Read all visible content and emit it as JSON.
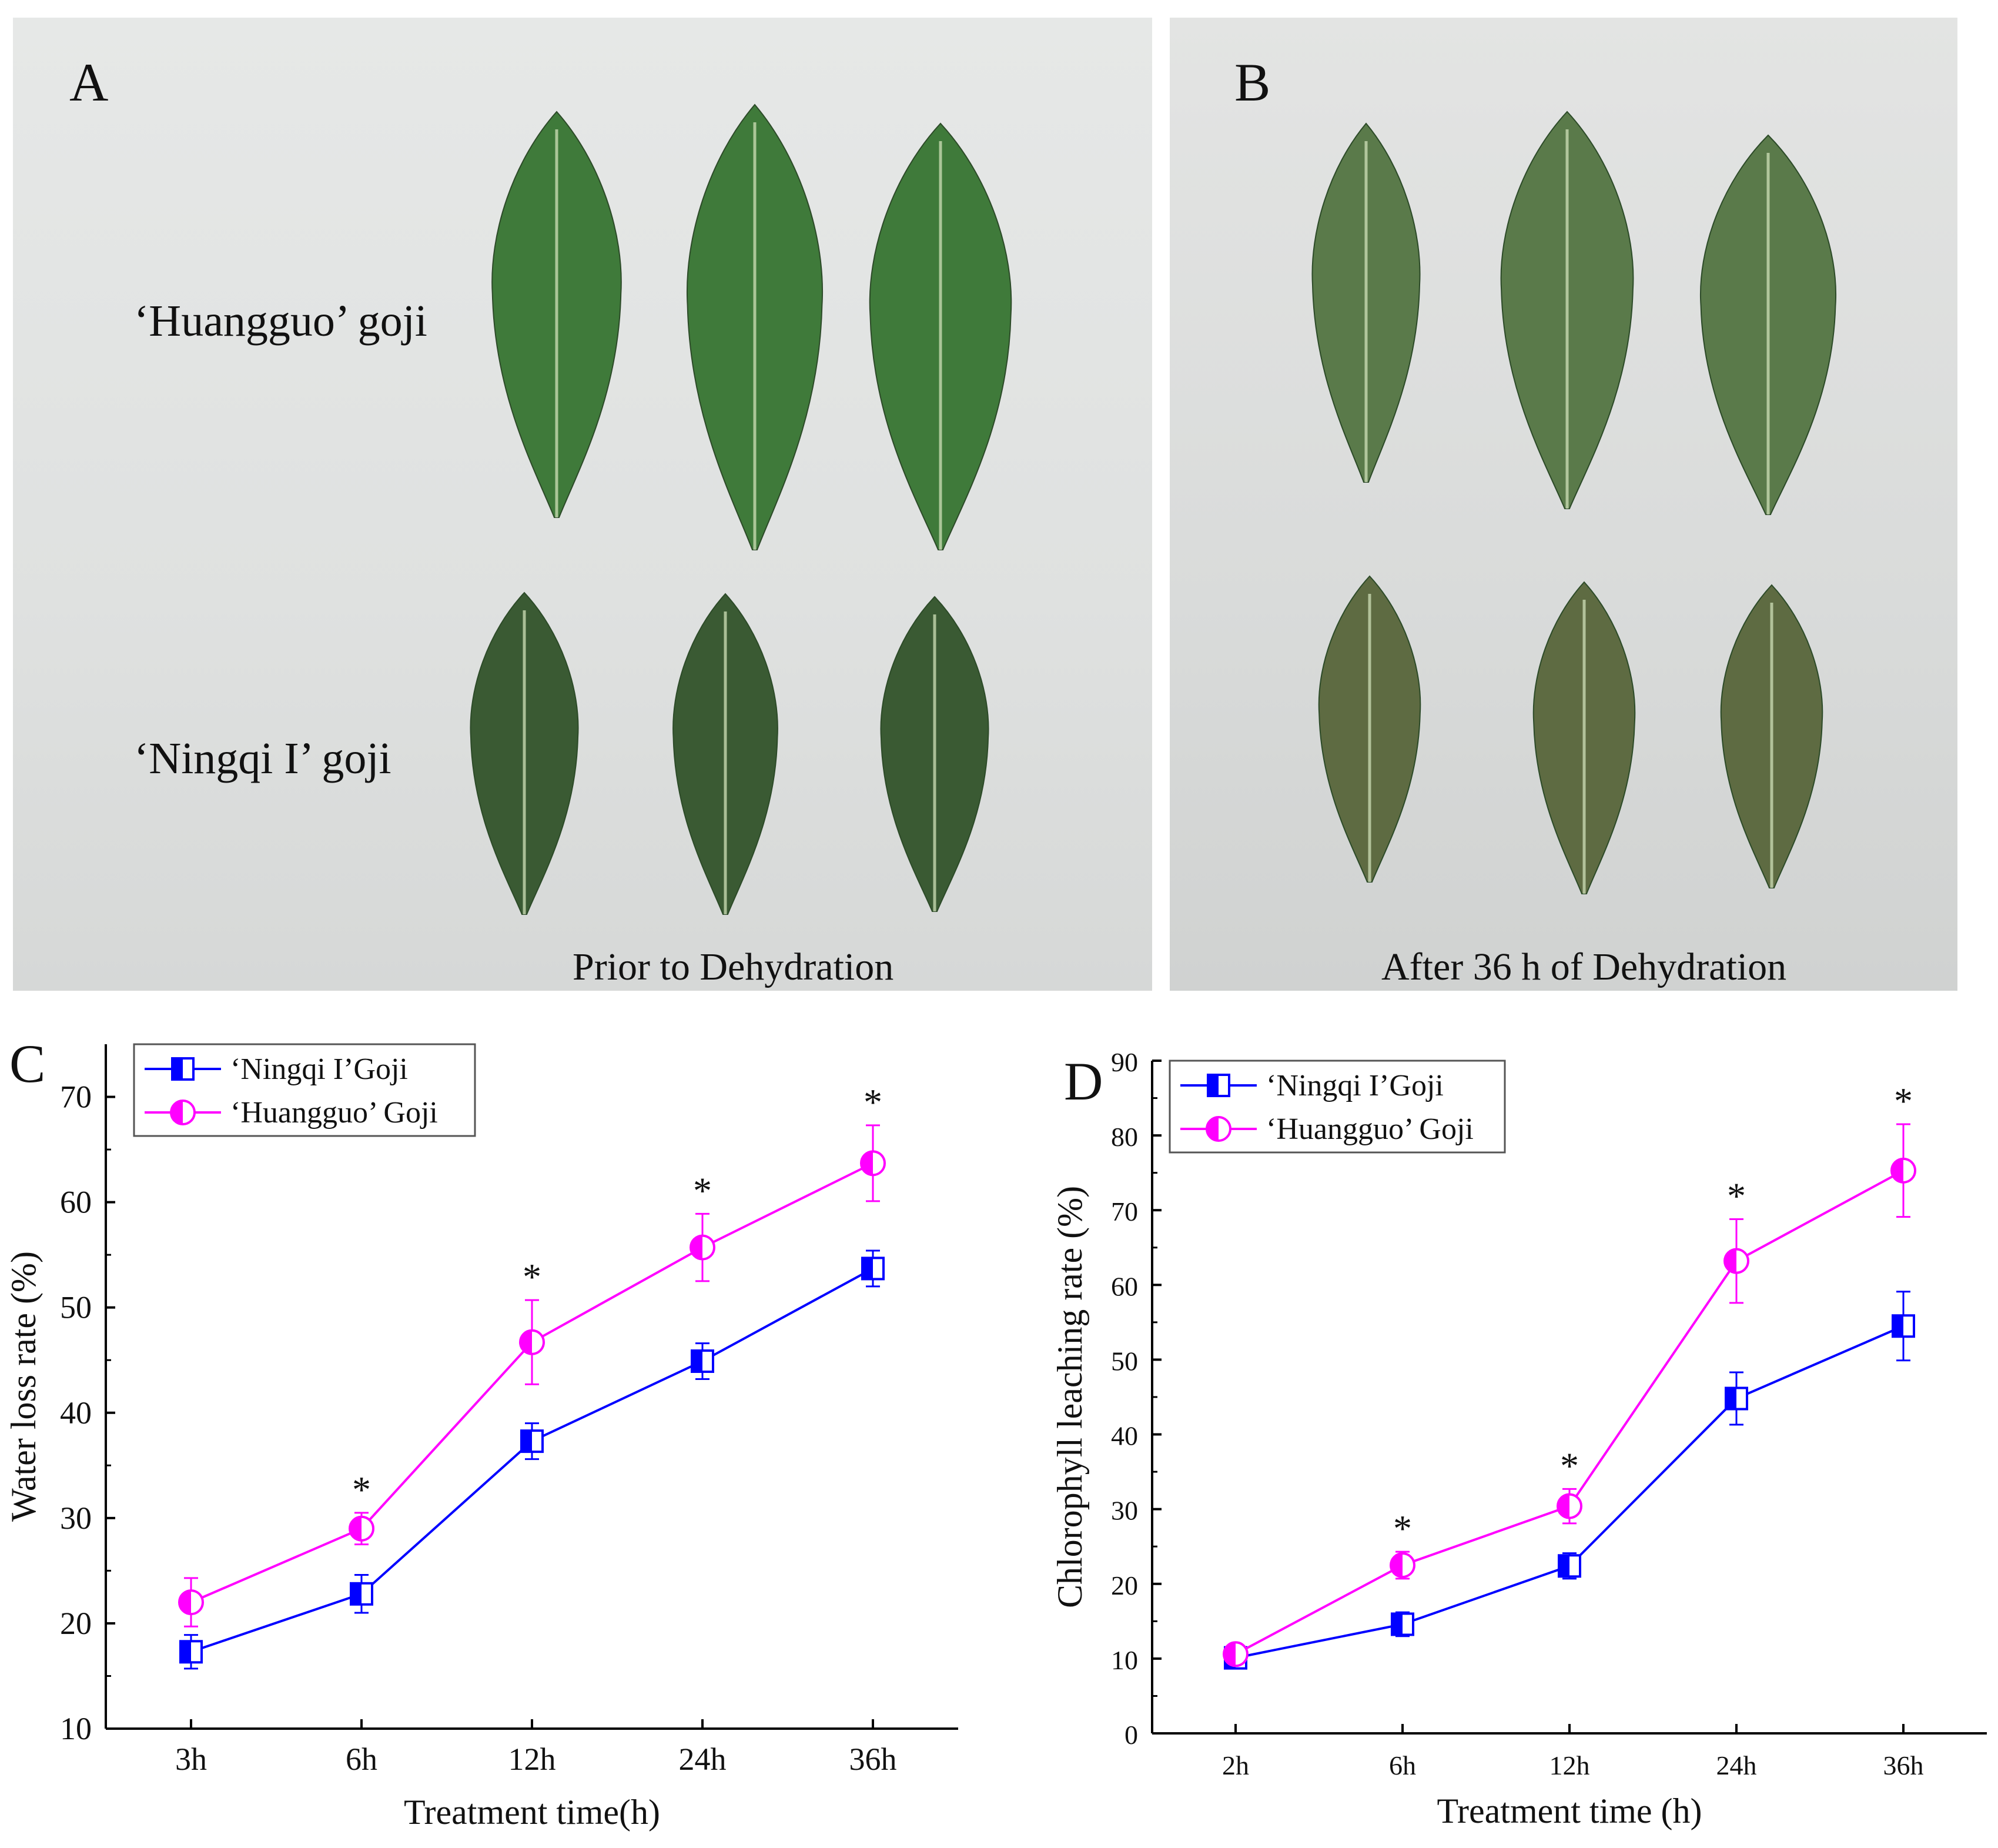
{
  "panel_a": {
    "letter": "A",
    "label_top": "‘Huangguo’ goji",
    "label_bottom": "‘Ningqi I’ goji",
    "caption": "Prior to Dehydration"
  },
  "panel_b": {
    "letter": "B",
    "caption": "After 36 h of Dehydration"
  },
  "colors": {
    "ningqi": "#0000ff",
    "huangguo": "#ff00ff",
    "leaf_fresh_huangguo": "#3f7a3a",
    "leaf_fresh_ningqi": "#3a5a33",
    "leaf_dry_huangguo": "#5a7a4a",
    "leaf_dry_ningqi": "#5e6b42"
  },
  "chart_data": [
    {
      "panel": "C",
      "type": "line",
      "categories": [
        "3h",
        "6h",
        "12h",
        "24h",
        "36h"
      ],
      "xlabel": "Treatment time(h)",
      "ylabel": "Water loss rate (%)",
      "ylim": [
        10,
        75
      ],
      "yticks": [
        10,
        20,
        30,
        40,
        50,
        60,
        70
      ],
      "legend": "top-left",
      "series": [
        {
          "name": "‘Ningqi I’Goji",
          "marker": "half-square",
          "values": [
            17.3,
            22.8,
            37.3,
            44.9,
            53.7
          ],
          "errors": [
            1.6,
            1.8,
            1.7,
            1.7,
            1.7
          ]
        },
        {
          "name": "‘Huangguo’ Goji",
          "marker": "half-circle",
          "values": [
            22.0,
            29.0,
            46.7,
            55.7,
            63.7
          ],
          "errors": [
            2.3,
            1.5,
            4.0,
            3.2,
            3.6
          ]
        }
      ],
      "significance": [
        "",
        "*",
        "*",
        "*",
        "*"
      ]
    },
    {
      "panel": "D",
      "type": "line",
      "categories": [
        "2h",
        "6h",
        "12h",
        "24h",
        "36h"
      ],
      "xlabel": "Treatment time (h)",
      "ylabel": "Chlorophyll leaching rate (%)",
      "ylim": [
        0,
        90
      ],
      "yticks": [
        0,
        10,
        20,
        30,
        40,
        50,
        60,
        70,
        80,
        90
      ],
      "legend": "top-left",
      "series": [
        {
          "name": "‘Ningqi I’Goji",
          "marker": "half-square",
          "values": [
            10.1,
            14.6,
            22.4,
            44.8,
            54.5
          ],
          "errors": [
            0.6,
            1.6,
            1.7,
            3.5,
            4.6
          ]
        },
        {
          "name": "‘Huangguo’ Goji",
          "marker": "half-circle",
          "values": [
            10.6,
            22.5,
            30.4,
            63.2,
            75.3
          ],
          "errors": [
            0.7,
            1.8,
            2.3,
            5.6,
            6.2
          ]
        }
      ],
      "significance": [
        "",
        "*",
        "*",
        "*",
        "*"
      ]
    }
  ]
}
